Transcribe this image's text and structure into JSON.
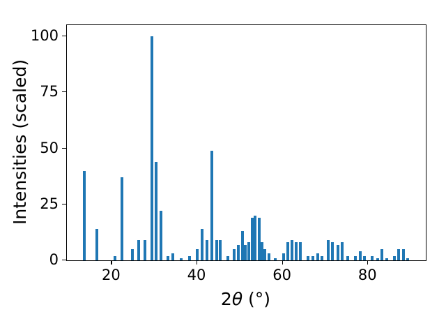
{
  "chart_data": {
    "type": "bar",
    "title": "",
    "xlabel": "2θ (°)",
    "xlabel_parts": {
      "prefix": "2",
      "theta": "θ",
      "suffix": " (°)"
    },
    "ylabel": "Intensities (scaled)",
    "xlim": [
      9.5,
      93.5
    ],
    "ylim": [
      0,
      105
    ],
    "xticks": [
      20,
      40,
      60,
      80
    ],
    "yticks": [
      0,
      25,
      50,
      75,
      100
    ],
    "grid": false,
    "legend": null,
    "bar_color": "#1f77b4",
    "x": [
      13.5,
      16.5,
      20.8,
      22.4,
      24.8,
      26.3,
      27.8,
      29.4,
      30.4,
      31.6,
      33.2,
      34.3,
      36.2,
      38.2,
      40.0,
      41.2,
      42.3,
      43.5,
      44.6,
      45.4,
      47.2,
      48.6,
      49.6,
      50.6,
      51.3,
      52.0,
      52.9,
      53.6,
      54.5,
      55.2,
      55.8,
      56.8,
      58.3,
      60.2,
      61.2,
      62.2,
      63.1,
      64.1,
      66.0,
      67.1,
      68.2,
      69.2,
      70.6,
      71.6,
      73.0,
      74.0,
      75.2,
      77.0,
      78.1,
      79.2,
      81.0,
      82.2,
      83.3,
      84.3,
      86.1,
      87.2,
      88.2,
      89.3
    ],
    "values": [
      40,
      14,
      2,
      37,
      5,
      9,
      9,
      100,
      44,
      22,
      2,
      3,
      1,
      2,
      5,
      14,
      9,
      49,
      9,
      9,
      2,
      5,
      7,
      13,
      7,
      8,
      19,
      20,
      19,
      8,
      5,
      3,
      1,
      3,
      8,
      9,
      8,
      8,
      2,
      2,
      3,
      2,
      9,
      8,
      7,
      8,
      2,
      2,
      4,
      2,
      2,
      1,
      5,
      1,
      2,
      5,
      5,
      1
    ]
  }
}
